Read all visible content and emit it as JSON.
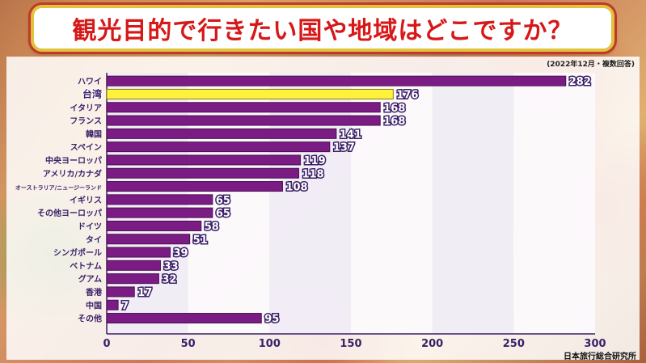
{
  "title": "観光目的で行きたい国や地域はどこですか？",
  "note": "(2022年12月・複数回答)",
  "source": "日本旅行総合研究所",
  "colors": {
    "bar": "#7b1c84",
    "highlight_bar": "#fff23a",
    "label": "#3a1f66",
    "title": "#d61818"
  },
  "chart_data": {
    "type": "bar",
    "orientation": "horizontal",
    "categories": [
      "ハワイ",
      "台湾",
      "イタリア",
      "フランス",
      "韓国",
      "スペイン",
      "中央ヨーロッパ",
      "アメリカ/カナダ",
      "オーストラリア/ニュージーランド",
      "イギリス",
      "その他ヨーロッパ",
      "ドイツ",
      "タイ",
      "シンガポール",
      "ベトナム",
      "グアム",
      "香港",
      "中国",
      "その他"
    ],
    "values": [
      282,
      176,
      168,
      168,
      141,
      137,
      119,
      118,
      108,
      65,
      65,
      58,
      51,
      39,
      33,
      32,
      17,
      7,
      95
    ],
    "highlight": [
      "台湾"
    ],
    "xlim": [
      0,
      300
    ],
    "xticks": [
      0,
      50,
      100,
      150,
      200,
      250,
      300
    ],
    "grid": "vertical bands"
  }
}
